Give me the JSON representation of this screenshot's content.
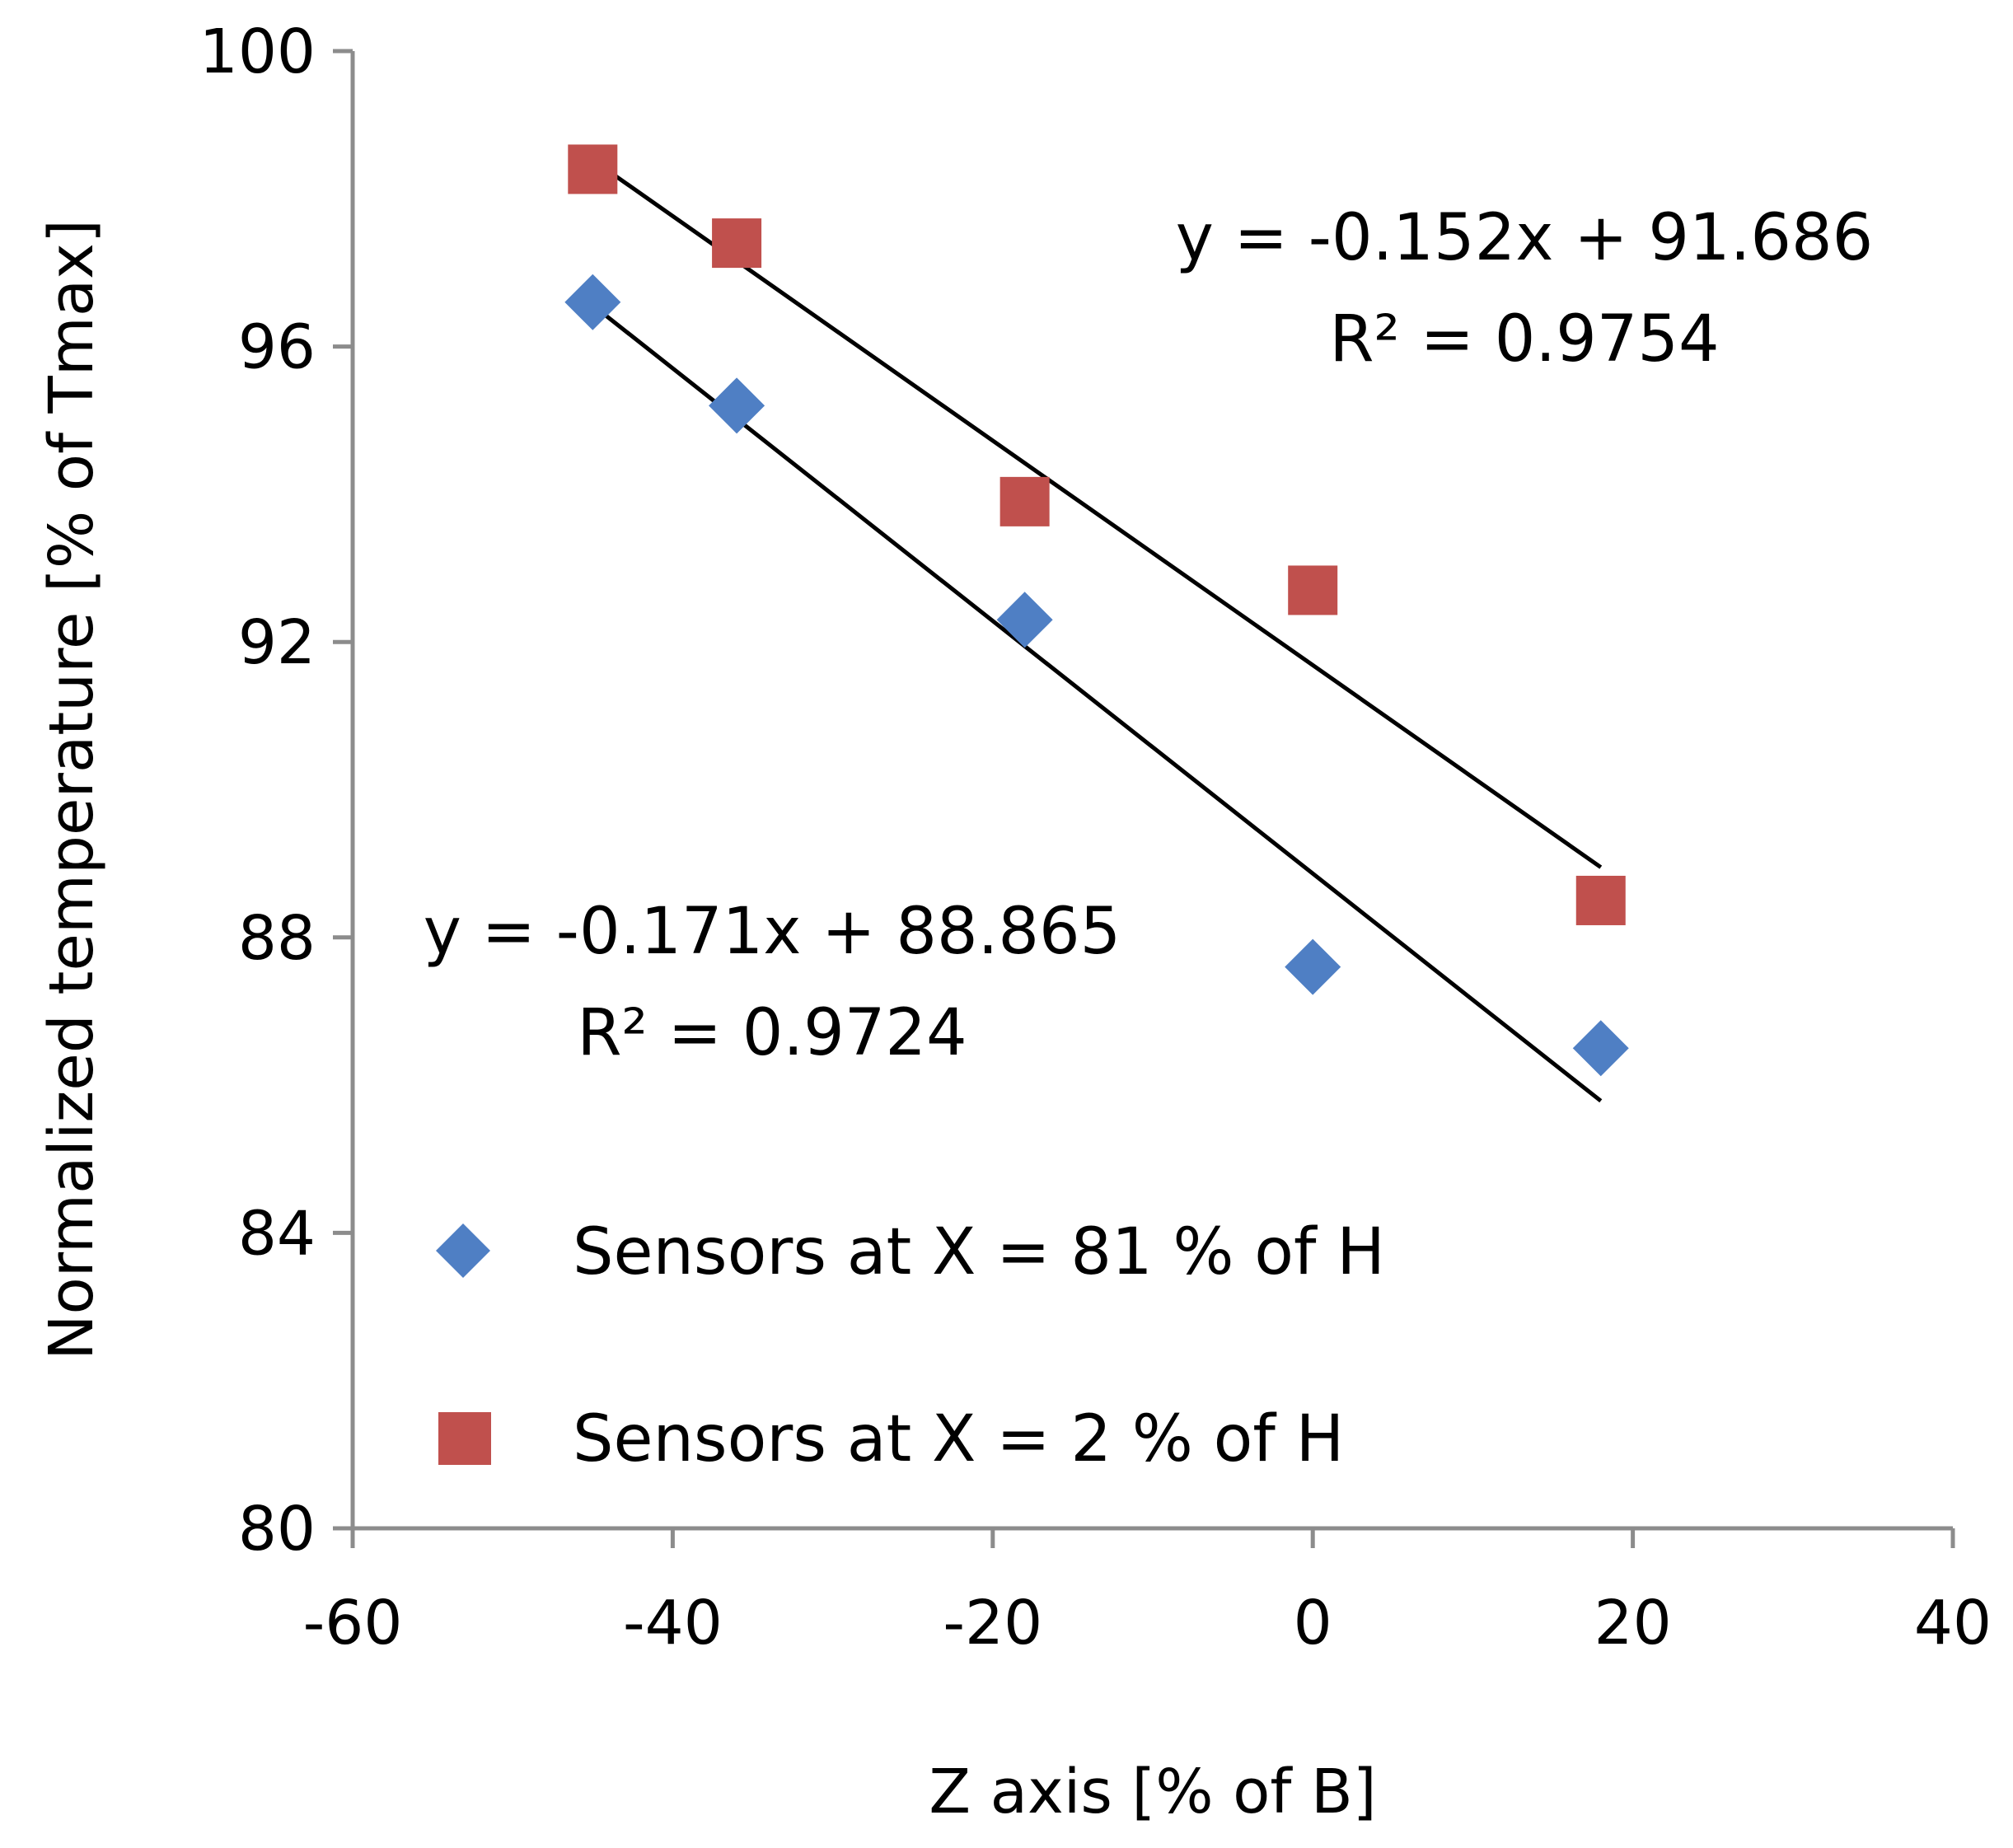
{
  "chart_data": {
    "type": "scatter",
    "title": "",
    "xlabel": "Z axis [% of B]",
    "ylabel": "Normalized temperature [% of  Tmax]",
    "xlim": [
      -60,
      40
    ],
    "ylim": [
      80,
      100
    ],
    "x_ticks": [
      "-60",
      "-40",
      "-20",
      "0",
      "20",
      "40"
    ],
    "y_ticks": [
      "80",
      "84",
      "88",
      "92",
      "96",
      "100"
    ],
    "grid": false,
    "legend_position": "bottom-left",
    "series": [
      {
        "name": "Sensors at X = 81 % of H",
        "marker": "diamond",
        "color": "#4f7fc4",
        "points": [
          {
            "x": -45,
            "y": 96.6
          },
          {
            "x": -36,
            "y": 95.2
          },
          {
            "x": -18,
            "y": 92.3
          },
          {
            "x": 0,
            "y": 87.6
          },
          {
            "x": 18,
            "y": 86.5
          }
        ],
        "trendline": {
          "slope": -0.171,
          "intercept": 88.865,
          "equation": "y = -0.171x + 88.865",
          "r_squared_label": "R² = 0.9724"
        }
      },
      {
        "name": "Sensors at X = 2 % of H",
        "marker": "square",
        "color": "#c0504d",
        "points": [
          {
            "x": -45,
            "y": 98.4
          },
          {
            "x": -36,
            "y": 97.4
          },
          {
            "x": -18,
            "y": 93.9
          },
          {
            "x": 0,
            "y": 92.7
          },
          {
            "x": 18,
            "y": 88.5
          }
        ],
        "trendline": {
          "slope": -0.152,
          "intercept": 91.686,
          "equation": "y = -0.152x + 91.686",
          "r_squared_label": "R² = 0.9754"
        }
      }
    ]
  }
}
